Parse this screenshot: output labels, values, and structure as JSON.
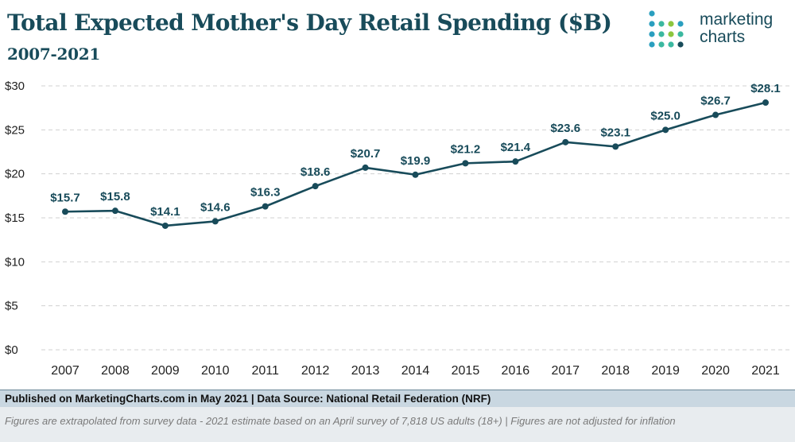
{
  "header": {
    "title": "Total Expected Mother's Day Retail Spending ($B)",
    "subtitle": "2007-2021"
  },
  "logo": {
    "line1": "marketing",
    "line2": "charts",
    "dot_colors": [
      "#2a9fbf",
      "#3bb8a0",
      "#8cc63f",
      "#184b5a"
    ]
  },
  "chart_data": {
    "type": "line",
    "categories": [
      "2007",
      "2008",
      "2009",
      "2010",
      "2011",
      "2012",
      "2013",
      "2014",
      "2015",
      "2016",
      "2017",
      "2018",
      "2019",
      "2020",
      "2021"
    ],
    "values": [
      15.7,
      15.8,
      14.1,
      14.6,
      16.3,
      18.6,
      20.7,
      19.9,
      21.2,
      21.4,
      23.6,
      23.1,
      25.0,
      26.7,
      28.1
    ],
    "data_labels": [
      "$15.7",
      "$15.8",
      "$14.1",
      "$14.6",
      "$16.3",
      "$18.6",
      "$20.7",
      "$19.9",
      "$21.2",
      "$21.4",
      "$23.6",
      "$23.1",
      "$25.0",
      "$26.7",
      "$28.1"
    ],
    "yticks": [
      0,
      5,
      10,
      15,
      20,
      25,
      30
    ],
    "ytick_labels": [
      "$0",
      "$5",
      "$10",
      "$15",
      "$20",
      "$25",
      "$30"
    ],
    "ylim": [
      0,
      30
    ],
    "grid": "horizontal dashed",
    "line_color": "#184b5a",
    "legend": "none"
  },
  "footer": {
    "source": "Published on MarketingCharts.com in May 2021 | Data Source: National Retail Federation (NRF)",
    "note": "Figures are extrapolated from survey data - 2021 estimate based on an April survey of 7,818 US adults (18+) | Figures are not adjusted for inflation"
  }
}
